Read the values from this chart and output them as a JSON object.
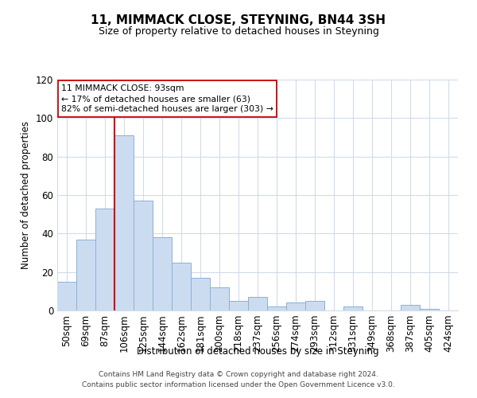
{
  "title": "11, MIMMACK CLOSE, STEYNING, BN44 3SH",
  "subtitle": "Size of property relative to detached houses in Steyning",
  "xlabel": "Distribution of detached houses by size in Steyning",
  "ylabel": "Number of detached properties",
  "bar_labels": [
    "50sqm",
    "69sqm",
    "87sqm",
    "106sqm",
    "125sqm",
    "144sqm",
    "162sqm",
    "181sqm",
    "200sqm",
    "218sqm",
    "237sqm",
    "256sqm",
    "274sqm",
    "293sqm",
    "312sqm",
    "331sqm",
    "349sqm",
    "368sqm",
    "387sqm",
    "405sqm",
    "424sqm"
  ],
  "bar_values": [
    15,
    37,
    53,
    91,
    57,
    38,
    25,
    17,
    12,
    5,
    7,
    2,
    4,
    5,
    0,
    2,
    0,
    0,
    3,
    1,
    0
  ],
  "bar_color": "#ccdcf0",
  "bar_edge_color": "#8ab0d8",
  "vline_x_idx": 2,
  "vline_color": "#cc0000",
  "ylim": [
    0,
    120
  ],
  "yticks": [
    0,
    20,
    40,
    60,
    80,
    100,
    120
  ],
  "annotation_title": "11 MIMMACK CLOSE: 93sqm",
  "annotation_line1": "← 17% of detached houses are smaller (63)",
  "annotation_line2": "82% of semi-detached houses are larger (303) →",
  "annotation_box_color": "#ffffff",
  "annotation_box_edge": "#cc0000",
  "footnote1": "Contains HM Land Registry data © Crown copyright and database right 2024.",
  "footnote2": "Contains public sector information licensed under the Open Government Licence v3.0.",
  "bg_color": "#ffffff",
  "grid_color": "#d0dcea"
}
